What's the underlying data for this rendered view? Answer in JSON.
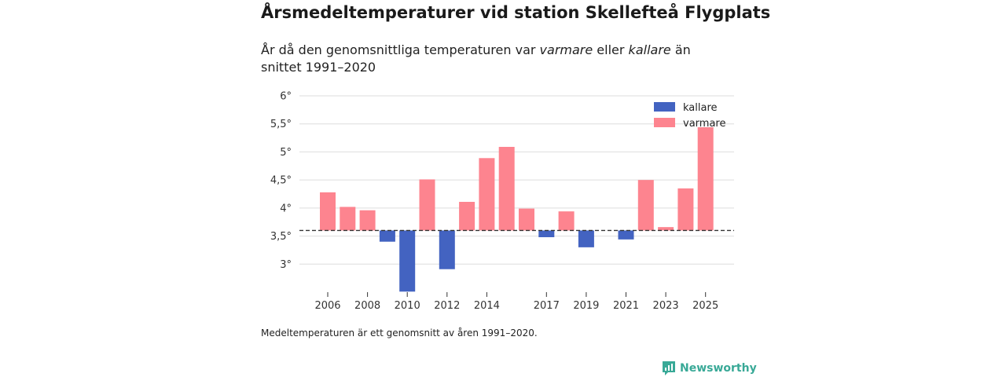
{
  "header": {
    "title": "Årsmedeltemperaturer vid station Skellefteå Flygplats",
    "subtitle_part1": "År då den genomsnittliga temperaturen var ",
    "subtitle_warm": "varmare",
    "subtitle_part2": " eller ",
    "subtitle_cold": "kallare",
    "subtitle_part3": " än snittet 1991–2020"
  },
  "chart_data": {
    "type": "bar",
    "title": "Årsmedeltemperaturer vid station Skellefteå Flygplats",
    "xlabel": "",
    "ylabel": "",
    "baseline": 3.6,
    "ylim": [
      2.5,
      6.0
    ],
    "yticks": [
      3,
      3.5,
      4,
      4.5,
      5,
      5.5,
      6
    ],
    "ytick_labels": [
      "3°",
      "3,5°",
      "4°",
      "4,5°",
      "5°",
      "5,5°",
      "6°"
    ],
    "categories": [
      2006,
      2007,
      2008,
      2009,
      2010,
      2011,
      2012,
      2013,
      2014,
      2015,
      2016,
      2017,
      2018,
      2019,
      2020,
      2021,
      2022,
      2023,
      2024,
      2025
    ],
    "values": [
      4.28,
      4.02,
      3.96,
      3.4,
      2.51,
      4.51,
      2.91,
      4.11,
      4.89,
      5.09,
      3.99,
      3.48,
      3.94,
      3.3,
      null,
      3.44,
      4.5,
      3.66,
      4.35,
      5.44
    ],
    "xtick_labels": [
      "2006",
      "2008",
      "2010",
      "2012",
      "2014",
      "2017",
      "2019",
      "2021",
      "2023",
      "2025"
    ],
    "legend": [
      {
        "name": "kallare",
        "color": "#4363c1"
      },
      {
        "name": "varmare",
        "color": "#fd848f"
      }
    ],
    "legend_position": "top-right"
  },
  "footer": {
    "note": "Medeltemperaturen är ett genomsnitt av åren 1991–2020.",
    "brand": "Newsworthy",
    "brand_icon": "newsworthy-logo-icon",
    "brand_color": "#39a997"
  }
}
